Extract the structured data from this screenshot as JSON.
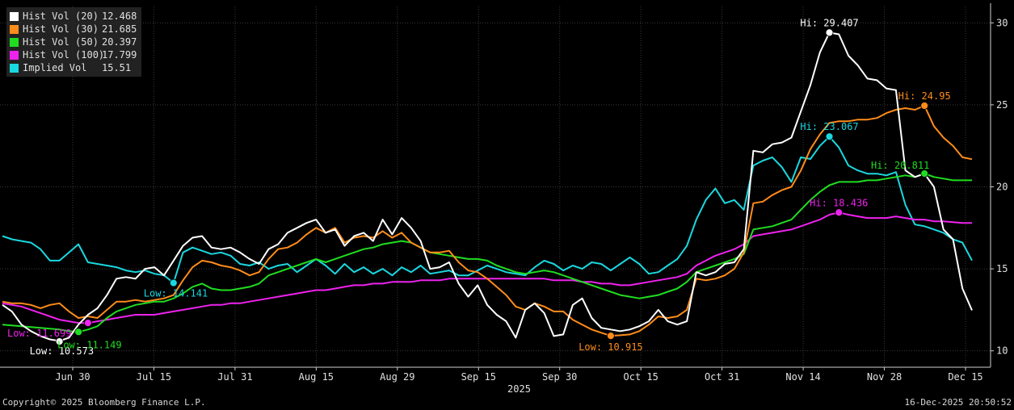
{
  "chart_data": {
    "type": "line",
    "ylim": [
      9,
      31
    ],
    "yticks": [
      10,
      15,
      20,
      25,
      30
    ],
    "xticks": [
      "Jun 30",
      "Jul 15",
      "Jul 31",
      "Aug 15",
      "Aug 29",
      "Sep 15",
      "Sep 30",
      "Oct 15",
      "Oct 31",
      "Nov 14",
      "Nov 28",
      "Dec 15"
    ],
    "year_label": "2025",
    "grid": true,
    "legend_position": "top-left",
    "series": [
      {
        "name": "Hist Vol (20)",
        "last": "12.468",
        "color": "#ffffff",
        "values": [
          12.8,
          12.4,
          11.6,
          11.2,
          10.9,
          10.7,
          10.6,
          10.8,
          11.6,
          12.2,
          12.6,
          13.4,
          14.4,
          14.5,
          14.4,
          15.0,
          15.1,
          14.6,
          15.5,
          16.4,
          16.9,
          17.0,
          16.3,
          16.2,
          16.3,
          16.0,
          15.6,
          15.3,
          16.2,
          16.5,
          17.2,
          17.5,
          17.8,
          18.0,
          17.2,
          17.4,
          16.4,
          17.0,
          17.2,
          16.7,
          18.0,
          17.1,
          18.1,
          17.5,
          16.7,
          15.0,
          15.1,
          15.4,
          14.1,
          13.3,
          14.0,
          12.8,
          12.2,
          11.8,
          10.8,
          12.5,
          12.9,
          12.3,
          10.9,
          11.0,
          12.8,
          13.2,
          12.0,
          11.4,
          11.3,
          11.2,
          11.3,
          11.5,
          11.8,
          12.5,
          11.8,
          11.6,
          11.8,
          14.8,
          14.6,
          14.8,
          15.3,
          15.4,
          16.2,
          22.2,
          22.1,
          22.6,
          22.7,
          23.0,
          24.6,
          26.2,
          28.2,
          29.407,
          29.3,
          28.0,
          27.4,
          26.6,
          26.5,
          26.0,
          25.9,
          21.0,
          20.6,
          20.8,
          20.0,
          17.4,
          16.8,
          13.8,
          12.468
        ]
      },
      {
        "name": "Hist Vol (30)",
        "last": "21.685",
        "color": "#ff8c1a",
        "values": [
          13.0,
          12.9,
          12.9,
          12.8,
          12.6,
          12.8,
          12.9,
          12.4,
          12.0,
          12.1,
          12.0,
          12.5,
          13.0,
          13.0,
          13.1,
          13.0,
          13.1,
          13.2,
          13.4,
          14.3,
          15.1,
          15.5,
          15.4,
          15.2,
          15.1,
          14.9,
          14.6,
          14.8,
          15.6,
          16.2,
          16.3,
          16.6,
          17.1,
          17.5,
          17.2,
          17.5,
          16.6,
          16.9,
          17.0,
          16.9,
          17.3,
          16.9,
          17.2,
          16.6,
          16.3,
          16.0,
          16.0,
          16.1,
          15.4,
          14.9,
          14.8,
          14.4,
          13.9,
          13.4,
          12.7,
          12.5,
          12.9,
          12.7,
          12.4,
          12.4,
          11.9,
          11.6,
          11.3,
          11.1,
          10.915,
          10.95,
          11.0,
          11.2,
          11.6,
          12.1,
          12.0,
          12.1,
          12.5,
          14.4,
          14.3,
          14.4,
          14.6,
          15.0,
          16.0,
          19.0,
          19.1,
          19.5,
          19.8,
          20.0,
          21.0,
          22.3,
          23.2,
          23.9,
          24.0,
          24.0,
          24.1,
          24.1,
          24.2,
          24.5,
          24.7,
          24.8,
          24.7,
          24.95,
          23.7,
          23.0,
          22.5,
          21.8,
          21.685
        ]
      },
      {
        "name": "Hist Vol (50)",
        "last": "20.397",
        "color": "#20dd20",
        "values": [
          11.6,
          11.55,
          11.5,
          11.45,
          11.4,
          11.35,
          11.3,
          11.2,
          11.149,
          11.3,
          11.5,
          12.0,
          12.4,
          12.6,
          12.8,
          12.9,
          13.0,
          13.0,
          13.2,
          13.5,
          13.9,
          14.1,
          13.8,
          13.7,
          13.7,
          13.8,
          13.9,
          14.1,
          14.6,
          14.8,
          15.0,
          15.2,
          15.4,
          15.6,
          15.4,
          15.6,
          15.8,
          16.0,
          16.2,
          16.3,
          16.5,
          16.6,
          16.7,
          16.6,
          16.3,
          16.0,
          15.9,
          15.8,
          15.7,
          15.6,
          15.6,
          15.5,
          15.2,
          15.0,
          14.8,
          14.7,
          14.8,
          14.9,
          14.8,
          14.6,
          14.4,
          14.2,
          14.0,
          13.8,
          13.6,
          13.4,
          13.3,
          13.2,
          13.3,
          13.4,
          13.6,
          13.8,
          14.2,
          14.8,
          15.0,
          15.2,
          15.4,
          15.6,
          15.9,
          17.4,
          17.5,
          17.6,
          17.8,
          18.0,
          18.6,
          19.2,
          19.7,
          20.1,
          20.3,
          20.3,
          20.3,
          20.4,
          20.4,
          20.5,
          20.6,
          20.7,
          20.6,
          20.811,
          20.6,
          20.5,
          20.4,
          20.4,
          20.397
        ]
      },
      {
        "name": "Hist Vol (100)",
        "last": "17.799",
        "color": "#ee22ee",
        "values": [
          12.9,
          12.8,
          12.7,
          12.5,
          12.3,
          12.1,
          11.9,
          11.8,
          11.7,
          11.699,
          11.8,
          11.9,
          12.0,
          12.1,
          12.2,
          12.2,
          12.2,
          12.3,
          12.4,
          12.5,
          12.6,
          12.7,
          12.8,
          12.8,
          12.9,
          12.9,
          13.0,
          13.1,
          13.2,
          13.3,
          13.4,
          13.5,
          13.6,
          13.7,
          13.7,
          13.8,
          13.9,
          14.0,
          14.0,
          14.1,
          14.1,
          14.2,
          14.2,
          14.2,
          14.3,
          14.3,
          14.3,
          14.4,
          14.4,
          14.4,
          14.4,
          14.4,
          14.4,
          14.4,
          14.4,
          14.4,
          14.4,
          14.4,
          14.3,
          14.3,
          14.3,
          14.2,
          14.2,
          14.1,
          14.1,
          14.0,
          14.0,
          14.1,
          14.2,
          14.3,
          14.4,
          14.5,
          14.7,
          15.2,
          15.5,
          15.8,
          16.0,
          16.2,
          16.5,
          17.0,
          17.1,
          17.2,
          17.3,
          17.4,
          17.6,
          17.8,
          18.0,
          18.3,
          18.436,
          18.3,
          18.2,
          18.1,
          18.1,
          18.1,
          18.2,
          18.1,
          18.0,
          18.0,
          17.9,
          17.9,
          17.85,
          17.8,
          17.799
        ]
      },
      {
        "name": "Implied Vol",
        "last": "15.51",
        "color": "#1ad8e0",
        "values": [
          17.0,
          16.8,
          16.7,
          16.6,
          16.2,
          15.5,
          15.5,
          16.0,
          16.5,
          15.4,
          15.3,
          15.2,
          15.1,
          14.9,
          14.8,
          14.9,
          14.7,
          14.6,
          14.141,
          16.0,
          16.3,
          16.1,
          15.9,
          16.0,
          15.8,
          15.3,
          15.2,
          15.4,
          15.0,
          15.2,
          15.3,
          14.8,
          15.2,
          15.6,
          15.2,
          14.7,
          15.3,
          14.8,
          15.1,
          14.7,
          15.0,
          14.6,
          15.1,
          14.8,
          15.2,
          14.7,
          14.8,
          14.9,
          14.6,
          14.6,
          14.9,
          15.2,
          15.0,
          14.8,
          14.7,
          14.6,
          15.1,
          15.5,
          15.3,
          14.9,
          15.2,
          15.0,
          15.4,
          15.3,
          14.9,
          15.3,
          15.7,
          15.3,
          14.7,
          14.8,
          15.2,
          15.6,
          16.4,
          18.0,
          19.2,
          19.9,
          19.0,
          19.2,
          18.6,
          21.3,
          21.6,
          21.8,
          21.2,
          20.3,
          21.8,
          21.7,
          22.5,
          23.067,
          22.4,
          21.3,
          21.0,
          20.8,
          20.8,
          20.7,
          20.9,
          18.9,
          17.7,
          17.6,
          17.4,
          17.2,
          16.8,
          16.6,
          15.51
        ]
      }
    ],
    "annotations": [
      {
        "text": "Hi: 29.407",
        "series": 0,
        "index": 87,
        "value": 29.407,
        "pos": "above"
      },
      {
        "text": "Low: 10.573",
        "series": 0,
        "index": 6,
        "value": 10.573,
        "pos": "below"
      },
      {
        "text": "Hi: 24.95",
        "series": 1,
        "index": 97,
        "value": 24.95,
        "pos": "above"
      },
      {
        "text": "Low: 10.915",
        "series": 1,
        "index": 64,
        "value": 10.915,
        "pos": "below"
      },
      {
        "text": "Hi: 20.811",
        "series": 2,
        "index": 97,
        "value": 20.811,
        "pos": "left-above"
      },
      {
        "text": "Low: 11.149",
        "series": 2,
        "index": 8,
        "value": 11.149,
        "pos": "below-right"
      },
      {
        "text": "Hi: 18.436",
        "series": 3,
        "index": 88,
        "value": 18.436,
        "pos": "above"
      },
      {
        "text": "Low: 11.699",
        "series": 3,
        "index": 9,
        "value": 11.699,
        "pos": "below-left"
      },
      {
        "text": "Hi: 23.067",
        "series": 4,
        "index": 87,
        "value": 23.067,
        "pos": "above"
      },
      {
        "text": "Low: 14.141",
        "series": 4,
        "index": 18,
        "value": 14.141,
        "pos": "below-left"
      }
    ]
  },
  "footer": {
    "copyright": "Copyright© 2025 Bloomberg Finance L.P.",
    "timestamp": "16-Dec-2025 20:50:52"
  }
}
